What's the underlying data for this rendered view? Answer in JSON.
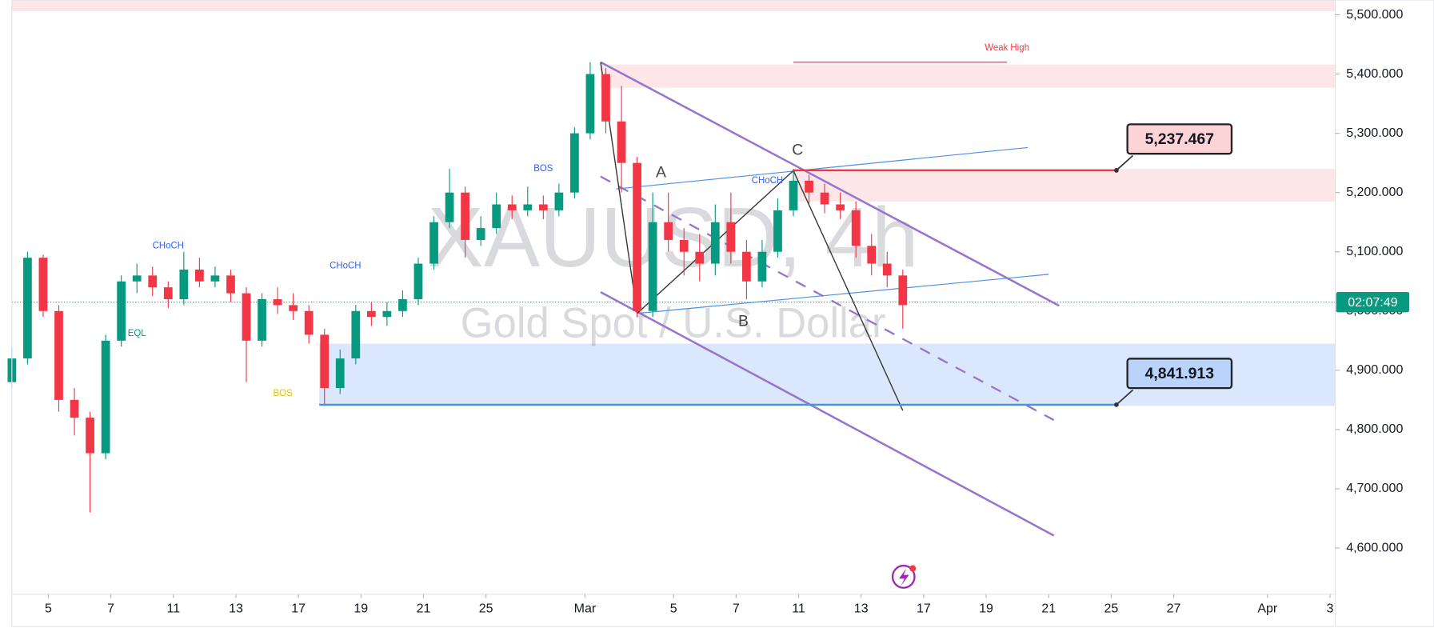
{
  "chart_data": {
    "type": "candlestick",
    "title": "XAUUSD, 4h",
    "subtitle": "Gold Spot / U.S. Dollar",
    "up_color": "#089981",
    "down_color": "#f23645",
    "x": [
      0,
      3,
      6,
      9,
      12,
      15,
      18,
      21,
      24,
      27,
      30,
      33,
      36,
      39,
      42,
      45,
      48,
      51,
      54,
      57,
      60,
      63,
      66,
      69,
      72,
      75,
      78,
      81,
      84,
      87,
      90,
      93,
      96,
      99,
      102,
      105,
      108,
      111,
      114,
      117,
      120,
      123,
      126,
      129,
      132,
      135,
      138,
      141,
      144,
      147,
      150,
      153,
      156,
      159,
      162,
      165,
      168,
      171
    ],
    "open": [
      4880,
      4920,
      5090,
      5000,
      4850,
      4820,
      4760,
      4950,
      5050,
      5060,
      5040,
      5020,
      5070,
      5050,
      5060,
      5030,
      4950,
      5020,
      5010,
      5000,
      4960,
      4870,
      4920,
      5000,
      4990,
      5000,
      5020,
      5080,
      5150,
      5200,
      5120,
      5140,
      5180,
      5170,
      5180,
      5170,
      5200,
      5300,
      5400,
      5320,
      5250,
      5000,
      5150,
      5120,
      5100,
      5080,
      5150,
      5100,
      5050,
      5100,
      5170,
      5220,
      5200,
      5180,
      5170,
      5110,
      5080,
      5060
    ],
    "high": [
      4940,
      5100,
      5095,
      5010,
      4870,
      4830,
      4960,
      5060,
      5080,
      5075,
      5050,
      5100,
      5090,
      5075,
      5070,
      5040,
      5030,
      5040,
      5030,
      5010,
      4970,
      4935,
      5010,
      5015,
      5015,
      5035,
      5090,
      5160,
      5240,
      5210,
      5160,
      5200,
      5195,
      5210,
      5195,
      5215,
      5310,
      5420,
      5410,
      5380,
      5260,
      5200,
      5200,
      5140,
      5130,
      5180,
      5200,
      5120,
      5120,
      5190,
      5240,
      5230,
      5215,
      5200,
      5185,
      5130,
      5100,
      5070
    ],
    "low": [
      4870,
      4910,
      4990,
      4830,
      4790,
      4660,
      4750,
      4940,
      5030,
      5025,
      5005,
      5010,
      5040,
      5040,
      5015,
      4880,
      4940,
      4995,
      4985,
      4945,
      4840,
      4860,
      4910,
      4975,
      4975,
      4990,
      5010,
      5070,
      5140,
      5090,
      5110,
      5130,
      5155,
      5160,
      5155,
      5160,
      5190,
      5290,
      5300,
      5200,
      4990,
      4990,
      5100,
      5060,
      5050,
      5060,
      5080,
      5020,
      5040,
      5090,
      5160,
      5180,
      5165,
      5155,
      5090,
      5060,
      5040,
      4970
    ],
    "close": [
      4920,
      5090,
      5000,
      4850,
      4820,
      4760,
      4950,
      5050,
      5060,
      5040,
      5020,
      5070,
      5050,
      5060,
      5030,
      4950,
      5020,
      5010,
      5000,
      4960,
      4870,
      4920,
      5000,
      4990,
      5000,
      5020,
      5080,
      5150,
      5200,
      5120,
      5140,
      5180,
      5170,
      5180,
      5170,
      5200,
      5300,
      5400,
      5320,
      5250,
      5000,
      5150,
      5120,
      5100,
      5080,
      5150,
      5100,
      5050,
      5100,
      5170,
      5220,
      5200,
      5180,
      5170,
      5110,
      5080,
      5060,
      5010
    ],
    "xlim": [
      0,
      254
    ],
    "ylim": [
      4522,
      5525
    ],
    "xticks": [
      {
        "value": 7,
        "label": "5"
      },
      {
        "value": 19,
        "label": "7"
      },
      {
        "value": 31,
        "label": "11"
      },
      {
        "value": 43,
        "label": "13"
      },
      {
        "value": 55,
        "label": "17"
      },
      {
        "value": 67,
        "label": "19"
      },
      {
        "value": 79,
        "label": "21"
      },
      {
        "value": 91,
        "label": "25"
      },
      {
        "value": 110,
        "label": "Mar"
      },
      {
        "value": 127,
        "label": "5"
      },
      {
        "value": 139,
        "label": "7"
      },
      {
        "value": 151,
        "label": "11"
      },
      {
        "value": 163,
        "label": "13"
      },
      {
        "value": 175,
        "label": "17"
      },
      {
        "value": 187,
        "label": "19"
      },
      {
        "value": 199,
        "label": "21"
      },
      {
        "value": 211,
        "label": "25"
      },
      {
        "value": 223,
        "label": "27"
      },
      {
        "value": 241,
        "label": "Apr"
      },
      {
        "value": 253,
        "label": "3"
      }
    ],
    "yticks": [
      {
        "value": 4600,
        "label": "4,600.000"
      },
      {
        "value": 4700,
        "label": "4,700.000"
      },
      {
        "value": 4800,
        "label": "4,800.000"
      },
      {
        "value": 4900,
        "label": "4,900.000"
      },
      {
        "value": 5000,
        "label": "5,000.000"
      },
      {
        "value": 5100,
        "label": "5,100.000"
      },
      {
        "value": 5200,
        "label": "5,200.000"
      },
      {
        "value": 5300,
        "label": "5,300.000"
      },
      {
        "value": 5400,
        "label": "5,400.000"
      },
      {
        "value": 5500,
        "label": "5,500.000"
      }
    ],
    "zones": [
      {
        "x": [
          0,
          254
        ],
        "y": [
          5506,
          5525
        ],
        "color": "#fde2e4"
      },
      {
        "x": [
          113,
          254
        ],
        "y": [
          5377,
          5416
        ],
        "color": "#fde2e4"
      },
      {
        "x": [
          150,
          254
        ],
        "y": [
          5185,
          5240
        ],
        "color": "#fde2e4"
      },
      {
        "x": [
          59,
          254
        ],
        "y": [
          4840,
          4945
        ],
        "color": "#d3e3fd"
      }
    ],
    "lines": [
      {
        "x": [
          113,
          201
        ],
        "y": [
          5420,
          5009
        ],
        "color": "#9575cd",
        "width": 2.2
      },
      {
        "x": [
          113,
          200
        ],
        "y": [
          5032,
          4621
        ],
        "color": "#9575cd",
        "width": 2.2
      },
      {
        "x": [
          113,
          200
        ],
        "y": [
          5227,
          4816
        ],
        "color": "#9575cd",
        "width": 2,
        "dash": true
      },
      {
        "x": [
          116,
          195
        ],
        "y": [
          5206,
          5276
        ],
        "color": "#4a90e2",
        "width": 1
      },
      {
        "x": [
          120,
          199
        ],
        "y": [
          4996,
          5062
        ],
        "color": "#4a90e2",
        "width": 1
      },
      {
        "x": [
          150,
          191
        ],
        "y": [
          5420,
          5420
        ],
        "color": "#f23645",
        "width": 1
      },
      {
        "x": [
          113,
          120
        ],
        "y": [
          5420,
          4996
        ],
        "color": "#333333",
        "width": 1.2
      },
      {
        "x": [
          120,
          150
        ],
        "y": [
          4996,
          5237
        ],
        "color": "#333333",
        "width": 1.2
      },
      {
        "x": [
          150,
          171
        ],
        "y": [
          5237,
          4832
        ],
        "color": "#333333",
        "width": 1.2
      }
    ],
    "levels": [
      {
        "value": 5237.467,
        "label": "5,237.467",
        "x": [
          150,
          212
        ],
        "color": "#f23645",
        "box": "#fcd4d6"
      },
      {
        "value": 4841.913,
        "label": "4,841.913",
        "x": [
          59,
          212
        ],
        "color": "#4a90e2",
        "box": "#b9d3fb"
      }
    ],
    "annotations": [
      {
        "text": "A",
        "x": 124.6,
        "y": 5233,
        "color": "#444444",
        "size": 17
      },
      {
        "text": "B",
        "x": 140.4,
        "y": 4982,
        "color": "#444444",
        "size": 17
      },
      {
        "text": "C",
        "x": 150.8,
        "y": 5271,
        "color": "#444444",
        "size": 17
      },
      {
        "text": "Weak High",
        "x": 191,
        "y": 5444,
        "color": "#f23645",
        "size": 10
      },
      {
        "text": "BOS",
        "x": 102,
        "y": 5240,
        "color": "#2962ff",
        "size": 10
      },
      {
        "text": "BOS",
        "x": 52,
        "y": 4861,
        "color": "#e6c200",
        "size": 10
      },
      {
        "text": "CHoCH",
        "x": 30,
        "y": 5110,
        "color": "#2962ff",
        "size": 10
      },
      {
        "text": "CHoCH",
        "x": 64,
        "y": 5076,
        "color": "#2962ff",
        "size": 10
      },
      {
        "text": "CHoCH",
        "x": 145,
        "y": 5220,
        "color": "#2962ff",
        "size": 10
      },
      {
        "text": "EQL",
        "x": 24,
        "y": 4962,
        "color": "#089981",
        "size": 10
      }
    ],
    "countdown": {
      "value": 5015,
      "label": "02:07:49"
    }
  }
}
